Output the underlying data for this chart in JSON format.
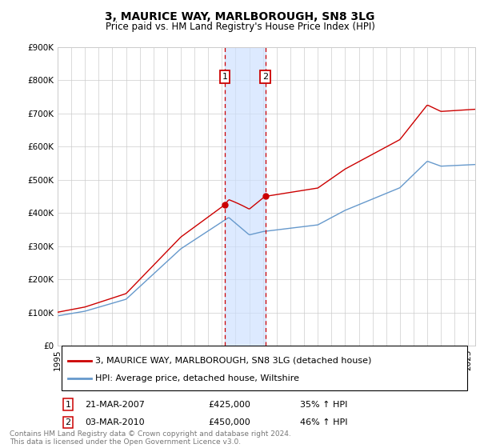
{
  "title": "3, MAURICE WAY, MARLBOROUGH, SN8 3LG",
  "subtitle": "Price paid vs. HM Land Registry's House Price Index (HPI)",
  "ylim": [
    0,
    900000
  ],
  "yticks": [
    0,
    100000,
    200000,
    300000,
    400000,
    500000,
    600000,
    700000,
    800000,
    900000
  ],
  "ytick_labels": [
    "£0",
    "£100K",
    "£200K",
    "£300K",
    "£400K",
    "£500K",
    "£600K",
    "£700K",
    "£800K",
    "£900K"
  ],
  "xlim_start": 1995.0,
  "xlim_end": 2025.5,
  "red_line_label": "3, MAURICE WAY, MARLBOROUGH, SN8 3LG (detached house)",
  "blue_line_label": "HPI: Average price, detached house, Wiltshire",
  "sale1_year": 2007.22,
  "sale1_price": 425000,
  "sale1_date": "21-MAR-2007",
  "sale1_pct": "35%",
  "sale2_year": 2010.17,
  "sale2_price": 450000,
  "sale2_date": "03-MAR-2010",
  "sale2_pct": "46%",
  "red_color": "#cc0000",
  "blue_color": "#6699cc",
  "shade_color": "#cce0ff",
  "marker_box_color": "#cc0000",
  "grid_color": "#cccccc",
  "footnote": "Contains HM Land Registry data © Crown copyright and database right 2024.\nThis data is licensed under the Open Government Licence v3.0.",
  "title_fontsize": 10,
  "subtitle_fontsize": 8.5,
  "tick_fontsize": 7.5,
  "legend_fontsize": 8,
  "footnote_fontsize": 6.5,
  "table_fontsize": 8
}
